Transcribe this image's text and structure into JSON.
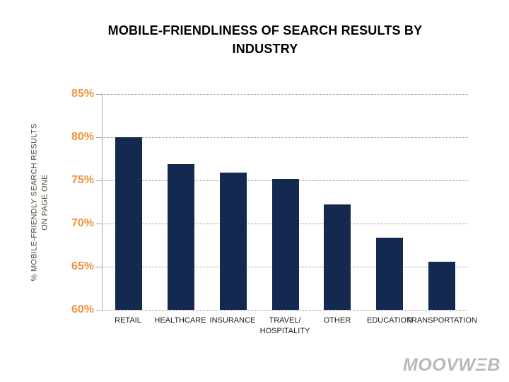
{
  "slide": {
    "title": "MOBILE-FRIENDLINESS OF SEARCH RESULTS BY\nINDUSTRY"
  },
  "chart_data": {
    "type": "bar",
    "title": "MOBILE-FRIENDLINESS OF SEARCH RESULTS BY INDUSTRY",
    "xlabel": "",
    "ylabel": "% MOBILE-FRIENDLY SEARCH RESULTS\nON PAGE ONE",
    "ylim": [
      60,
      85
    ],
    "grid": true,
    "legend": false,
    "yticks": [
      {
        "value": 85,
        "label": "85%"
      },
      {
        "value": 80,
        "label": "80%"
      },
      {
        "value": 75,
        "label": "75%"
      },
      {
        "value": 70,
        "label": "70%"
      },
      {
        "value": 65,
        "label": "65%"
      },
      {
        "value": 60,
        "label": "60%"
      }
    ],
    "categories": [
      "RETAIL",
      "HEALTHCARE",
      "INSURANCE",
      "TRAVEL/\nHOSPITALITY",
      "OTHER",
      "EDUCATION",
      "TRANSPORTATION"
    ],
    "values": [
      80,
      76.9,
      75.9,
      75.2,
      72.2,
      68.4,
      65.6
    ],
    "colors": {
      "bar": "#13294f",
      "ytick_label": "#ef943c",
      "gridline": "#8f8f8f",
      "axis": "#a6a6a6"
    }
  },
  "footer": {
    "logo_text": "MOOVWΞB"
  }
}
